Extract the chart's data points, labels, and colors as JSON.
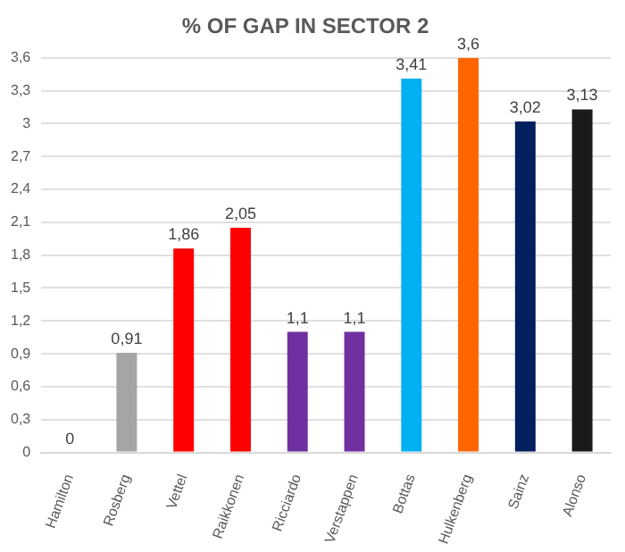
{
  "chart_data": {
    "type": "bar",
    "title": "% OF GAP IN SECTOR 2",
    "categories": [
      "Hamilton",
      "Rosberg",
      "Vettel",
      "Raikkonen",
      "Ricciardo",
      "Verstappen",
      "Bottas",
      "Hulkenberg",
      "Sainz",
      "Alonso"
    ],
    "values": [
      0,
      0.91,
      1.86,
      2.05,
      1.1,
      1.1,
      3.41,
      3.6,
      3.02,
      3.13
    ],
    "value_labels": [
      "0",
      "0,91",
      "1,86",
      "2,05",
      "1,1",
      "1,1",
      "3,41",
      "3,6",
      "3,02",
      "3,13"
    ],
    "colors": [
      "#00a19c",
      "#a5a5a5",
      "#ff0000",
      "#ff0000",
      "#7030a0",
      "#7030a0",
      "#00b0f0",
      "#ff6600",
      "#002060",
      "#1a1a1a"
    ],
    "ylim": [
      0,
      3.6
    ],
    "yticks": [
      0,
      {
        "value": 0.3,
        "label": "0,3"
      },
      {
        "value": 0.6,
        "label": "0,6"
      },
      {
        "value": 0.9,
        "label": "0,9"
      },
      {
        "value": 1.2,
        "label": "1,2"
      },
      {
        "value": 1.5,
        "label": "1,5"
      },
      {
        "value": 1.8,
        "label": "1,8"
      },
      {
        "value": 2.1,
        "label": "2,1"
      },
      {
        "value": 2.4,
        "label": "2,4"
      },
      {
        "value": 2.7,
        "label": "2,7"
      },
      3,
      {
        "value": 3.3,
        "label": "3,3"
      },
      {
        "value": 3.6,
        "label": "3,6"
      }
    ],
    "grid": "y"
  }
}
